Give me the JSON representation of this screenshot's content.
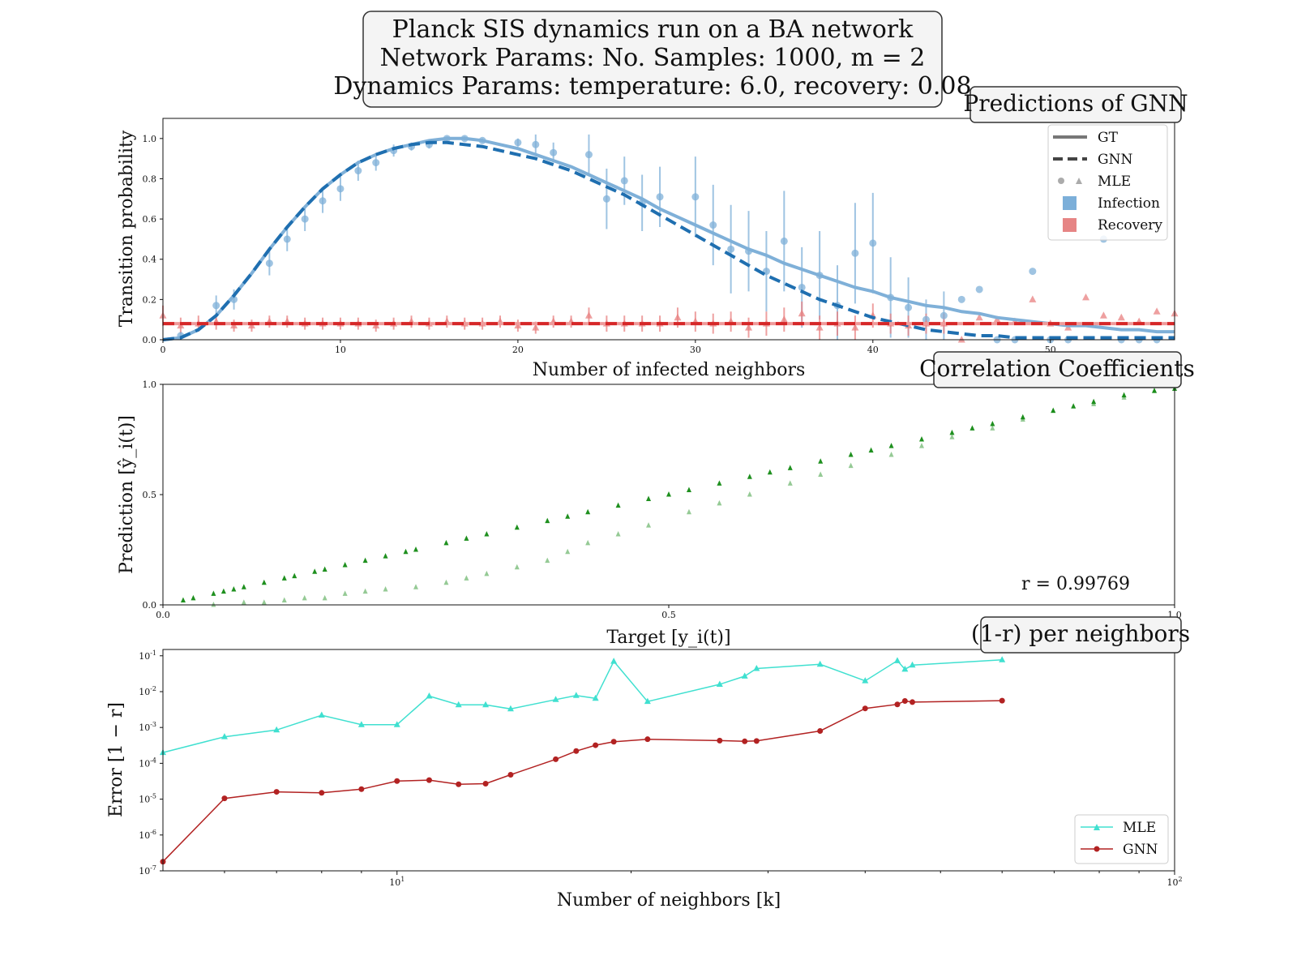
{
  "figure": {
    "suptitle_lines": [
      "Planck SIS dynamics run on a BA network",
      "Network Params: No. Samples: 1000, m = 2",
      "Dynamics Params: temperature: 6.0, recovery: 0.08"
    ]
  },
  "colors": {
    "infection": "#1f6fb0",
    "infection_light": "#7fb0d8",
    "recovery": "#d62728",
    "recovery_light": "#e88080",
    "correlation": "#138a13",
    "mle_line": "#40e0d0",
    "gnn_line": "#b22222"
  },
  "chart_data": [
    {
      "type": "line",
      "title": "Predictions of GNN",
      "xlabel": "Number of infected neighbors",
      "ylabel": "Transition probability",
      "xlim": [
        0,
        57
      ],
      "ylim": [
        0,
        1.1
      ],
      "xticks": [
        0,
        10,
        20,
        30,
        40,
        50
      ],
      "yticks": [
        0.0,
        0.2,
        0.4,
        0.6,
        0.8,
        1.0
      ],
      "legend_position": "top-right",
      "legend": [
        "GT",
        "GNN",
        "MLE",
        "Infection",
        "Recovery"
      ],
      "recovery_value": 0.08,
      "series": [
        {
          "name": "GT",
          "process": "Infection",
          "style": "solid",
          "x": [
            0,
            1,
            2,
            3,
            4,
            5,
            6,
            7,
            8,
            9,
            10,
            11,
            12,
            13,
            14,
            15,
            16,
            17,
            18,
            19,
            20,
            21,
            22,
            23,
            24,
            25,
            26,
            27,
            28,
            29,
            30,
            31,
            32,
            33,
            34,
            35,
            36,
            37,
            38,
            39,
            40,
            41,
            42,
            43,
            44,
            45,
            46,
            47,
            48,
            49,
            50,
            51,
            52,
            53,
            54,
            55,
            56,
            57
          ],
          "y": [
            0.0,
            0.01,
            0.05,
            0.12,
            0.22,
            0.33,
            0.45,
            0.56,
            0.66,
            0.75,
            0.82,
            0.88,
            0.92,
            0.95,
            0.97,
            0.99,
            1.0,
            1.0,
            0.99,
            0.97,
            0.95,
            0.92,
            0.89,
            0.86,
            0.82,
            0.78,
            0.74,
            0.7,
            0.65,
            0.61,
            0.57,
            0.53,
            0.49,
            0.45,
            0.42,
            0.38,
            0.35,
            0.32,
            0.29,
            0.26,
            0.24,
            0.21,
            0.19,
            0.17,
            0.16,
            0.14,
            0.13,
            0.11,
            0.1,
            0.09,
            0.08,
            0.07,
            0.07,
            0.06,
            0.05,
            0.05,
            0.04,
            0.04
          ]
        },
        {
          "name": "GNN",
          "process": "Infection",
          "style": "dashed",
          "x": [
            0,
            1,
            2,
            3,
            4,
            5,
            6,
            7,
            8,
            9,
            10,
            11,
            12,
            13,
            14,
            15,
            16,
            17,
            18,
            19,
            20,
            21,
            22,
            23,
            24,
            25,
            26,
            27,
            28,
            29,
            30,
            31,
            32,
            33,
            34,
            35,
            36,
            37,
            38,
            39,
            40,
            41,
            42,
            43,
            44,
            45,
            46,
            47,
            48,
            49,
            50,
            51,
            52,
            53,
            54,
            55,
            56,
            57
          ],
          "y": [
            0.0,
            0.01,
            0.05,
            0.12,
            0.22,
            0.33,
            0.45,
            0.56,
            0.66,
            0.75,
            0.82,
            0.88,
            0.92,
            0.95,
            0.97,
            0.98,
            0.98,
            0.97,
            0.96,
            0.94,
            0.92,
            0.9,
            0.87,
            0.84,
            0.8,
            0.76,
            0.72,
            0.67,
            0.62,
            0.57,
            0.52,
            0.47,
            0.42,
            0.37,
            0.32,
            0.28,
            0.24,
            0.2,
            0.17,
            0.14,
            0.11,
            0.09,
            0.07,
            0.05,
            0.04,
            0.03,
            0.02,
            0.02,
            0.01,
            0.01,
            0.01,
            0.01,
            0.01,
            0.01,
            0.01,
            0.01,
            0.01,
            0.01
          ]
        },
        {
          "name": "GT",
          "process": "Recovery",
          "style": "solid",
          "x": [
            0,
            57
          ],
          "y": [
            0.08,
            0.08
          ]
        },
        {
          "name": "GNN",
          "process": "Recovery",
          "style": "dashed",
          "x": [
            0,
            57
          ],
          "y": [
            0.08,
            0.08
          ]
        },
        {
          "name": "MLE",
          "process": "Infection",
          "marker": "circle",
          "x": [
            1,
            3,
            4,
            6,
            7,
            8,
            9,
            10,
            11,
            12,
            13,
            14,
            15,
            16,
            17,
            18,
            20,
            21,
            22,
            24,
            25,
            26,
            27,
            28,
            30,
            31,
            32,
            33,
            34,
            35,
            36,
            37,
            38,
            39,
            40,
            41,
            42,
            43,
            44,
            45,
            46,
            47,
            48,
            49,
            50,
            51,
            53,
            54,
            55,
            56
          ],
          "y": [
            0.02,
            0.17,
            0.2,
            0.38,
            0.5,
            0.6,
            0.69,
            0.75,
            0.84,
            0.88,
            0.94,
            0.96,
            0.97,
            1.0,
            1.0,
            0.99,
            0.98,
            0.97,
            0.93,
            0.92,
            0.7,
            0.79,
            0.68,
            0.71,
            0.71,
            0.57,
            0.45,
            0.44,
            0.34,
            0.49,
            0.26,
            0.32,
            0.17,
            0.43,
            0.48,
            0.21,
            0.16,
            0.1,
            0.12,
            0.2,
            0.25,
            0.0,
            0.0,
            0.34,
            0.0,
            0.0,
            0.5,
            0.0,
            0.0,
            0.0
          ],
          "yerr": [
            0.02,
            0.05,
            0.05,
            0.06,
            0.06,
            0.06,
            0.06,
            0.06,
            0.05,
            0.04,
            0.03,
            0.02,
            0.02,
            0.01,
            0.01,
            0.01,
            0.02,
            0.05,
            0.05,
            0.1,
            0.15,
            0.12,
            0.14,
            0.15,
            0.2,
            0.2,
            0.22,
            0.2,
            0.2,
            0.25,
            0.2,
            0.22,
            0.2,
            0.25,
            0.25,
            0.2,
            0.15,
            0.1,
            0.12,
            0.0,
            0.0,
            0.0,
            0.0,
            0.0,
            0.0,
            0.0,
            0.0,
            0.0,
            0.0,
            0.0
          ]
        },
        {
          "name": "MLE",
          "process": "Recovery",
          "marker": "triangle",
          "x": [
            0,
            1,
            2,
            3,
            4,
            5,
            6,
            7,
            8,
            9,
            10,
            11,
            12,
            13,
            14,
            15,
            16,
            17,
            18,
            19,
            20,
            21,
            22,
            23,
            24,
            25,
            26,
            27,
            28,
            29,
            30,
            31,
            32,
            33,
            34,
            35,
            36,
            37,
            38,
            39,
            40,
            41,
            42,
            43,
            44,
            45,
            46,
            47,
            48,
            49,
            50,
            51,
            52,
            53,
            54,
            55,
            56,
            57
          ],
          "y": [
            0.12,
            0.07,
            0.08,
            0.09,
            0.07,
            0.07,
            0.09,
            0.09,
            0.08,
            0.08,
            0.08,
            0.08,
            0.07,
            0.08,
            0.09,
            0.08,
            0.09,
            0.08,
            0.08,
            0.09,
            0.07,
            0.06,
            0.09,
            0.09,
            0.12,
            0.08,
            0.08,
            0.08,
            0.08,
            0.11,
            0.09,
            0.08,
            0.09,
            0.06,
            0.08,
            0.1,
            0.13,
            0.06,
            0.08,
            0.06,
            0.12,
            0.08,
            0.07,
            0.08,
            0.08,
            0.0,
            0.11,
            0.1,
            0.09,
            0.2,
            0.08,
            0.06,
            0.21,
            0.12,
            0.11,
            0.09,
            0.14,
            0.13
          ],
          "yerr": [
            0.05,
            0.04,
            0.04,
            0.04,
            0.03,
            0.03,
            0.03,
            0.03,
            0.03,
            0.03,
            0.03,
            0.03,
            0.03,
            0.03,
            0.03,
            0.03,
            0.03,
            0.03,
            0.03,
            0.03,
            0.03,
            0.03,
            0.03,
            0.03,
            0.04,
            0.04,
            0.04,
            0.04,
            0.04,
            0.05,
            0.05,
            0.05,
            0.05,
            0.05,
            0.06,
            0.06,
            0.06,
            0.06,
            0.06,
            0.06,
            0.06,
            0.05,
            0.05,
            0.05,
            0.05,
            0.0,
            0.0,
            0.0,
            0.0,
            0.0,
            0.0,
            0.0,
            0.0,
            0.0,
            0.0,
            0.0,
            0.0,
            0.0
          ]
        }
      ]
    },
    {
      "type": "scatter",
      "title": "Correlation Coefficients",
      "xlabel": "Target [y_i(t)]",
      "ylabel": "Prediction [ŷ_i(t)]",
      "xlim": [
        0,
        1
      ],
      "ylim": [
        0,
        1
      ],
      "xticks": [
        0.0,
        0.5,
        1.0
      ],
      "yticks": [
        0.0,
        0.5,
        1.0
      ],
      "annotation": "r = 0.99769",
      "series": [
        {
          "name": "Infection",
          "x": [
            0.02,
            0.03,
            0.05,
            0.06,
            0.07,
            0.08,
            0.1,
            0.12,
            0.13,
            0.15,
            0.16,
            0.18,
            0.2,
            0.22,
            0.24,
            0.25,
            0.28,
            0.3,
            0.32,
            0.35,
            0.38,
            0.4,
            0.42,
            0.45,
            0.48,
            0.5,
            0.52,
            0.55,
            0.58,
            0.6,
            0.62,
            0.65,
            0.68,
            0.7,
            0.72,
            0.75,
            0.78,
            0.8,
            0.82,
            0.85,
            0.88,
            0.9,
            0.92,
            0.95,
            0.98,
            1.0
          ],
          "y": [
            0.02,
            0.03,
            0.05,
            0.06,
            0.07,
            0.08,
            0.1,
            0.12,
            0.13,
            0.15,
            0.16,
            0.18,
            0.2,
            0.22,
            0.24,
            0.25,
            0.28,
            0.3,
            0.32,
            0.35,
            0.38,
            0.4,
            0.42,
            0.45,
            0.48,
            0.5,
            0.52,
            0.55,
            0.58,
            0.6,
            0.62,
            0.65,
            0.68,
            0.7,
            0.72,
            0.75,
            0.78,
            0.8,
            0.82,
            0.85,
            0.88,
            0.9,
            0.92,
            0.95,
            0.97,
            0.98
          ]
        },
        {
          "name": "Recovery",
          "x": [
            0.05,
            0.08,
            0.1,
            0.12,
            0.14,
            0.16,
            0.18,
            0.2,
            0.22,
            0.25,
            0.28,
            0.3,
            0.32,
            0.35,
            0.38,
            0.4,
            0.42,
            0.45,
            0.48,
            0.52,
            0.55,
            0.58,
            0.62,
            0.65,
            0.68,
            0.72,
            0.75,
            0.78,
            0.82,
            0.85,
            0.88,
            0.92,
            0.95,
            0.98
          ],
          "y": [
            0.0,
            0.01,
            0.01,
            0.02,
            0.03,
            0.03,
            0.05,
            0.06,
            0.07,
            0.08,
            0.1,
            0.12,
            0.14,
            0.17,
            0.2,
            0.24,
            0.28,
            0.32,
            0.36,
            0.42,
            0.46,
            0.5,
            0.55,
            0.59,
            0.63,
            0.68,
            0.72,
            0.76,
            0.8,
            0.84,
            0.88,
            0.91,
            0.94,
            0.97
          ]
        }
      ]
    },
    {
      "type": "line",
      "title": "(1-r) per neighbors",
      "xlabel": "Number of neighbors [k]",
      "ylabel": "Error [1 − r]",
      "xscale": "log",
      "yscale": "log",
      "xlim": [
        5,
        100
      ],
      "ylim": [
        1e-07,
        0.15
      ],
      "xticks": [
        10,
        100
      ],
      "xtick_labels": [
        "10^1",
        "10^2"
      ],
      "yticks": [
        1e-07,
        1e-06,
        1e-05,
        0.0001,
        0.001,
        0.01,
        0.1
      ],
      "ytick_labels": [
        "10^-7",
        "10^-6",
        "10^-5",
        "10^-4",
        "10^-3",
        "10^-2",
        "10^-1"
      ],
      "legend_position": "bottom-right",
      "series": [
        {
          "name": "MLE",
          "marker": "triangle",
          "x": [
            5,
            6,
            7,
            8,
            9,
            10,
            11,
            12,
            13,
            14,
            16,
            17,
            18,
            19,
            21,
            26,
            28,
            29,
            35,
            40,
            44,
            45,
            46,
            60
          ],
          "y": [
            0.0002,
            0.00055,
            0.00085,
            0.0022,
            0.0012,
            0.0012,
            0.0075,
            0.0043,
            0.0043,
            0.0033,
            0.006,
            0.0078,
            0.0065,
            0.07,
            0.0053,
            0.016,
            0.027,
            0.044,
            0.058,
            0.02,
            0.073,
            0.042,
            0.055,
            0.077
          ]
        },
        {
          "name": "GNN",
          "marker": "circle",
          "x": [
            5,
            6,
            7,
            8,
            9,
            10,
            11,
            12,
            13,
            14,
            16,
            17,
            18,
            19,
            21,
            26,
            28,
            29,
            35,
            40,
            44,
            45,
            46,
            60
          ],
          "y": [
            1.8e-07,
            1.05e-05,
            1.6e-05,
            1.5e-05,
            1.9e-05,
            3.2e-05,
            3.4e-05,
            2.6e-05,
            2.7e-05,
            4.8e-05,
            0.00013,
            0.00022,
            0.00032,
            0.0004,
            0.00047,
            0.00043,
            0.00041,
            0.00042,
            0.0008,
            0.0034,
            0.0044,
            0.0055,
            0.0051,
            0.0056
          ]
        }
      ]
    }
  ]
}
